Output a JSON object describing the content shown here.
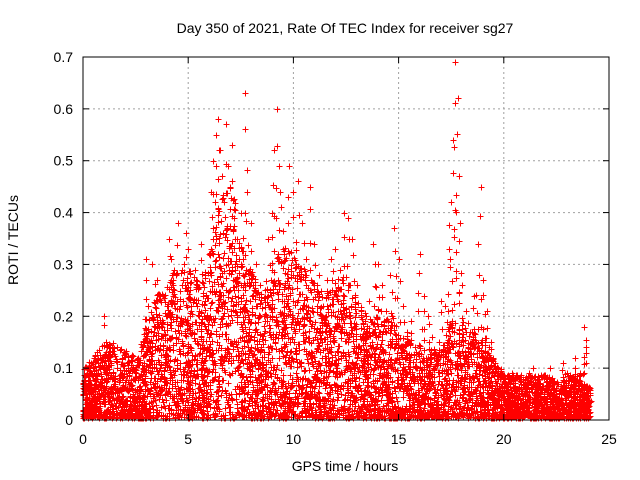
{
  "chart_data": {
    "type": "scatter",
    "title": "Day 350 of 2021, Rate Of TEC Index for receiver sg27",
    "xlabel": "GPS time / hours",
    "ylabel": "ROTI / TECUs",
    "xlim": [
      0,
      25
    ],
    "ylim": [
      0,
      0.7
    ],
    "x_ticks": [
      0,
      5,
      10,
      15,
      20,
      25
    ],
    "y_ticks": [
      0,
      0.1,
      0.2,
      0.3,
      0.4,
      0.5,
      0.6,
      0.7
    ],
    "x_tick_labels": [
      "0",
      "5",
      "10",
      "15",
      "20",
      "25"
    ],
    "y_tick_labels": [
      "0",
      "0.1",
      "0.2",
      "0.3",
      "0.4",
      "0.5",
      "0.6",
      "0.7"
    ],
    "grid": true,
    "marker": "+",
    "color": "#ff0000",
    "series": [
      {
        "points": [
          [
            0.1,
            0.02
          ],
          [
            0.2,
            0.09
          ],
          [
            0.3,
            0.05
          ],
          [
            0.4,
            0.11
          ],
          [
            0.6,
            0.07
          ],
          [
            0.8,
            0.12
          ],
          [
            1.0,
            0.2
          ],
          [
            1.1,
            0.15
          ],
          [
            1.2,
            0.08
          ],
          [
            1.4,
            0.14
          ],
          [
            1.6,
            0.1
          ],
          [
            1.8,
            0.06
          ],
          [
            2.0,
            0.13
          ],
          [
            2.2,
            0.09
          ],
          [
            2.4,
            0.05
          ],
          [
            2.6,
            0.12
          ],
          [
            2.8,
            0.08
          ],
          [
            3.0,
            0.31
          ],
          [
            3.1,
            0.22
          ],
          [
            3.2,
            0.15
          ],
          [
            3.3,
            0.3
          ],
          [
            3.5,
            0.27
          ],
          [
            3.6,
            0.18
          ],
          [
            3.8,
            0.24
          ],
          [
            4.0,
            0.2
          ],
          [
            4.1,
            0.35
          ],
          [
            4.2,
            0.31
          ],
          [
            4.3,
            0.26
          ],
          [
            4.5,
            0.38
          ],
          [
            4.6,
            0.22
          ],
          [
            4.8,
            0.3
          ],
          [
            4.9,
            0.36
          ],
          [
            5.0,
            0.33
          ],
          [
            5.1,
            0.25
          ],
          [
            5.3,
            0.29
          ],
          [
            5.5,
            0.21
          ],
          [
            5.6,
            0.34
          ],
          [
            5.8,
            0.28
          ],
          [
            6.0,
            0.32
          ],
          [
            6.1,
            0.44
          ],
          [
            6.2,
            0.5
          ],
          [
            6.3,
            0.55
          ],
          [
            6.4,
            0.58
          ],
          [
            6.5,
            0.52
          ],
          [
            6.6,
            0.47
          ],
          [
            6.7,
            0.42
          ],
          [
            6.8,
            0.57
          ],
          [
            6.9,
            0.49
          ],
          [
            7.0,
            0.45
          ],
          [
            7.1,
            0.53
          ],
          [
            7.2,
            0.39
          ],
          [
            7.3,
            0.35
          ],
          [
            7.4,
            0.31
          ],
          [
            7.5,
            0.4
          ],
          [
            7.6,
            0.28
          ],
          [
            7.7,
            0.63
          ],
          [
            7.8,
            0.44
          ],
          [
            8.0,
            0.38
          ],
          [
            8.2,
            0.3
          ],
          [
            8.4,
            0.26
          ],
          [
            8.6,
            0.2
          ],
          [
            8.8,
            0.35
          ],
          [
            9.0,
            0.4
          ],
          [
            9.1,
            0.52
          ],
          [
            9.2,
            0.6
          ],
          [
            9.3,
            0.49
          ],
          [
            9.4,
            0.41
          ],
          [
            9.5,
            0.33
          ],
          [
            9.6,
            0.26
          ],
          [
            9.8,
            0.49
          ],
          [
            10.0,
            0.44
          ],
          [
            10.2,
            0.46
          ],
          [
            10.4,
            0.38
          ],
          [
            10.6,
            0.31
          ],
          [
            10.8,
            0.45
          ],
          [
            11.0,
            0.34
          ],
          [
            11.2,
            0.28
          ],
          [
            11.4,
            0.22
          ],
          [
            11.6,
            0.27
          ],
          [
            11.8,
            0.31
          ],
          [
            12.0,
            0.33
          ],
          [
            12.2,
            0.29
          ],
          [
            12.4,
            0.4
          ],
          [
            12.6,
            0.39
          ],
          [
            12.8,
            0.35
          ],
          [
            13.0,
            0.26
          ],
          [
            13.2,
            0.21
          ],
          [
            13.4,
            0.19
          ],
          [
            13.6,
            0.23
          ],
          [
            13.8,
            0.34
          ],
          [
            14.0,
            0.3
          ],
          [
            14.2,
            0.26
          ],
          [
            14.4,
            0.21
          ],
          [
            14.6,
            0.28
          ],
          [
            14.8,
            0.37
          ],
          [
            15.0,
            0.31
          ],
          [
            15.2,
            0.22
          ],
          [
            15.4,
            0.17
          ],
          [
            15.6,
            0.19
          ],
          [
            15.8,
            0.14
          ],
          [
            16.0,
            0.32
          ],
          [
            16.2,
            0.24
          ],
          [
            16.4,
            0.2
          ],
          [
            16.6,
            0.16
          ],
          [
            16.8,
            0.12
          ],
          [
            17.0,
            0.23
          ],
          [
            17.2,
            0.22
          ],
          [
            17.4,
            0.33
          ],
          [
            17.5,
            0.42
          ],
          [
            17.6,
            0.54
          ],
          [
            17.7,
            0.69
          ],
          [
            17.8,
            0.62
          ],
          [
            17.9,
            0.38
          ],
          [
            18.0,
            0.26
          ],
          [
            18.2,
            0.21
          ],
          [
            18.4,
            0.17
          ],
          [
            18.6,
            0.24
          ],
          [
            18.8,
            0.28
          ],
          [
            18.9,
            0.45
          ],
          [
            19.0,
            0.27
          ],
          [
            19.2,
            0.21
          ],
          [
            19.4,
            0.15
          ],
          [
            19.6,
            0.11
          ],
          [
            19.8,
            0.09
          ],
          [
            20.0,
            0.08
          ],
          [
            20.2,
            0.07
          ],
          [
            20.4,
            0.09
          ],
          [
            20.6,
            0.06
          ],
          [
            20.8,
            0.08
          ],
          [
            21.0,
            0.07
          ],
          [
            21.2,
            0.09
          ],
          [
            21.4,
            0.1
          ],
          [
            21.6,
            0.08
          ],
          [
            21.8,
            0.06
          ],
          [
            22.0,
            0.08
          ],
          [
            22.2,
            0.1
          ],
          [
            22.4,
            0.07
          ],
          [
            22.6,
            0.05
          ],
          [
            22.8,
            0.11
          ],
          [
            23.0,
            0.09
          ],
          [
            23.2,
            0.08
          ],
          [
            23.4,
            0.12
          ],
          [
            23.6,
            0.09
          ],
          [
            23.8,
            0.18
          ],
          [
            23.9,
            0.13
          ],
          [
            24.0,
            0.06
          ]
        ]
      }
    ],
    "envelope": [
      [
        0.0,
        0.08
      ],
      [
        0.5,
        0.1
      ],
      [
        1.0,
        0.13
      ],
      [
        1.5,
        0.12
      ],
      [
        2.0,
        0.11
      ],
      [
        2.5,
        0.1
      ],
      [
        3.0,
        0.15
      ],
      [
        3.5,
        0.2
      ],
      [
        4.0,
        0.22
      ],
      [
        4.5,
        0.25
      ],
      [
        5.0,
        0.24
      ],
      [
        5.5,
        0.22
      ],
      [
        6.0,
        0.26
      ],
      [
        6.5,
        0.36
      ],
      [
        7.0,
        0.38
      ],
      [
        7.5,
        0.3
      ],
      [
        8.0,
        0.24
      ],
      [
        8.5,
        0.2
      ],
      [
        9.0,
        0.24
      ],
      [
        9.5,
        0.28
      ],
      [
        10.0,
        0.27
      ],
      [
        10.5,
        0.24
      ],
      [
        11.0,
        0.22
      ],
      [
        11.5,
        0.2
      ],
      [
        12.0,
        0.22
      ],
      [
        12.5,
        0.24
      ],
      [
        13.0,
        0.19
      ],
      [
        13.5,
        0.17
      ],
      [
        14.0,
        0.18
      ],
      [
        14.5,
        0.17
      ],
      [
        15.0,
        0.16
      ],
      [
        15.5,
        0.13
      ],
      [
        16.0,
        0.12
      ],
      [
        16.5,
        0.11
      ],
      [
        17.0,
        0.12
      ],
      [
        17.5,
        0.16
      ],
      [
        18.0,
        0.15
      ],
      [
        18.5,
        0.14
      ],
      [
        19.0,
        0.14
      ],
      [
        19.5,
        0.1
      ],
      [
        20.0,
        0.07
      ],
      [
        20.5,
        0.07
      ],
      [
        21.0,
        0.07
      ],
      [
        21.5,
        0.07
      ],
      [
        22.0,
        0.07
      ],
      [
        22.5,
        0.06
      ],
      [
        23.0,
        0.07
      ],
      [
        23.5,
        0.07
      ],
      [
        24.0,
        0.05
      ]
    ]
  }
}
